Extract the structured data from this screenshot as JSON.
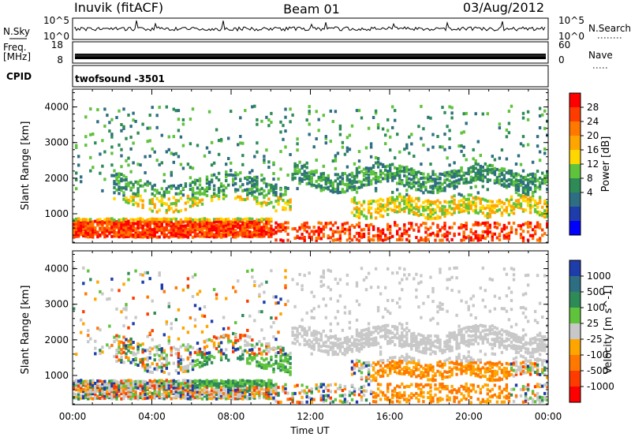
{
  "header": {
    "station": "Inuvik (fitACF)",
    "beam": "Beam 01",
    "date": "03/Aug/2012"
  },
  "top_panels": {
    "nsky": {
      "label": "N.Sky",
      "right_label": "N.Search",
      "left_ticks": [
        "10^5",
        "10^0"
      ],
      "right_ticks": [
        "10^5",
        "10^0"
      ]
    },
    "freq": {
      "label_lines": [
        "Freq.",
        "[MHz]"
      ],
      "right_label": "Nave",
      "left_ticks": [
        "18",
        "8"
      ],
      "right_ticks": [
        "60",
        "0"
      ]
    },
    "cpid": {
      "label": "CPID",
      "program": "twofsound -3501"
    }
  },
  "chart_data": [
    {
      "type": "heatmap",
      "name": "power",
      "ylabel": "Slant Range [km]",
      "colorbar_label": "Power [dB]",
      "colorbar": {
        "ticks": [
          "28",
          "24",
          "20",
          "16",
          "12",
          "8",
          "4"
        ],
        "colors": [
          "#ff0000",
          "#ff3c00",
          "#ff7800",
          "#ffa500",
          "#ffd700",
          "#5fc33c",
          "#2e8b57",
          "#2e6e82",
          "#1e3caa",
          "#0000ff"
        ]
      },
      "x_ticks": [
        "00:00",
        "04:00",
        "08:00",
        "12:00",
        "16:00",
        "20:00",
        "00:00"
      ],
      "y_ticks": [
        1000,
        2000,
        3000,
        4000
      ],
      "xlim": [
        0,
        24
      ],
      "ylim": [
        180,
        4500
      ]
    },
    {
      "type": "heatmap",
      "name": "velocity",
      "ylabel": "Slant Range [km]",
      "colorbar_label": "Velocity [m s^-1]",
      "colorbar": {
        "ticks": [
          "1000",
          "500",
          "100",
          "25",
          "-25",
          "-100",
          "-500",
          "-1000"
        ],
        "colors": [
          "#1e3caa",
          "#2e6e82",
          "#2e8b57",
          "#5fc33c",
          "#c8c8c8",
          "#ffa500",
          "#ff7800",
          "#ff3c00",
          "#ff0000"
        ]
      },
      "x_ticks": [
        "00:00",
        "04:00",
        "08:00",
        "12:00",
        "16:00",
        "20:00",
        "00:00"
      ],
      "y_ticks": [
        1000,
        2000,
        3000,
        4000
      ],
      "xlim": [
        0,
        24
      ],
      "ylim": [
        180,
        4500
      ],
      "xlabel": "Time UT"
    }
  ]
}
